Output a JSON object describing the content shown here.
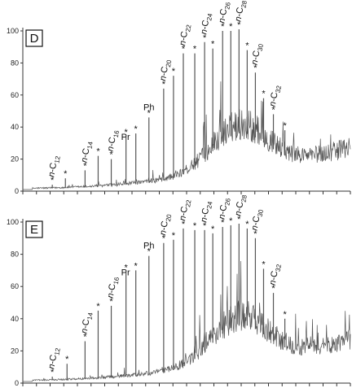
{
  "chart_data": [
    {
      "type": "line",
      "panel": "D",
      "ylim": [
        0,
        100
      ],
      "yticks": [
        0,
        20,
        40,
        60,
        80,
        100
      ],
      "xticks": 24,
      "peaks": [
        {
          "x": 0.09,
          "y": 4,
          "label": "n-C",
          "sub": "12",
          "star": true
        },
        {
          "x": 0.13,
          "y": 8,
          "label": "",
          "sub": "",
          "star": true
        },
        {
          "x": 0.19,
          "y": 13,
          "label": "n-C",
          "sub": "14",
          "star": true
        },
        {
          "x": 0.23,
          "y": 22,
          "label": "",
          "sub": "",
          "star": true
        },
        {
          "x": 0.27,
          "y": 20,
          "label": "n-C",
          "sub": "16",
          "star": true
        },
        {
          "x": 0.315,
          "y": 34,
          "label": "Pr",
          "sub": "",
          "star": true
        },
        {
          "x": 0.345,
          "y": 36,
          "label": "",
          "sub": "",
          "star": true
        },
        {
          "x": 0.385,
          "y": 46,
          "label": "Ph",
          "sub": "",
          "star": true
        },
        {
          "x": 0.43,
          "y": 64,
          "label": "n-C",
          "sub": "20",
          "star": true
        },
        {
          "x": 0.46,
          "y": 72,
          "label": "",
          "sub": "",
          "star": true
        },
        {
          "x": 0.49,
          "y": 86,
          "label": "n-C",
          "sub": "22",
          "star": true
        },
        {
          "x": 0.525,
          "y": 86,
          "label": "",
          "sub": "",
          "star": true
        },
        {
          "x": 0.555,
          "y": 93,
          "label": "n-C",
          "sub": "24",
          "star": true
        },
        {
          "x": 0.58,
          "y": 89,
          "label": "",
          "sub": "",
          "star": true
        },
        {
          "x": 0.61,
          "y": 100,
          "label": "n-C",
          "sub": "26",
          "star": true
        },
        {
          "x": 0.635,
          "y": 100,
          "label": "",
          "sub": "",
          "star": true
        },
        {
          "x": 0.66,
          "y": 101,
          "label": "n-C",
          "sub": "28",
          "star": true
        },
        {
          "x": 0.685,
          "y": 88,
          "label": "",
          "sub": "",
          "star": true
        },
        {
          "x": 0.71,
          "y": 74,
          "label": "n-C",
          "sub": "30",
          "star": true
        },
        {
          "x": 0.735,
          "y": 58,
          "label": "",
          "sub": "",
          "star": true
        },
        {
          "x": 0.765,
          "y": 48,
          "label": "n-C",
          "sub": "32",
          "star": true
        },
        {
          "x": 0.8,
          "y": 38,
          "label": "",
          "sub": "",
          "star": true
        }
      ]
    },
    {
      "type": "line",
      "panel": "E",
      "ylim": [
        0,
        100
      ],
      "yticks": [
        0,
        20,
        40,
        60,
        80,
        100
      ],
      "xticks": 24,
      "peaks": [
        {
          "x": 0.09,
          "y": 4,
          "label": "n-C",
          "sub": "12",
          "star": true
        },
        {
          "x": 0.135,
          "y": 12,
          "label": "",
          "sub": "",
          "star": true
        },
        {
          "x": 0.19,
          "y": 26,
          "label": "n-C",
          "sub": "14",
          "star": true
        },
        {
          "x": 0.23,
          "y": 45,
          "label": "",
          "sub": "",
          "star": true
        },
        {
          "x": 0.27,
          "y": 48,
          "label": "n-C",
          "sub": "16",
          "star": true
        },
        {
          "x": 0.315,
          "y": 69,
          "label": "Pr",
          "sub": "",
          "star": true
        },
        {
          "x": 0.345,
          "y": 70,
          "label": "",
          "sub": "",
          "star": true
        },
        {
          "x": 0.385,
          "y": 79,
          "label": "Ph",
          "sub": "",
          "star": true
        },
        {
          "x": 0.43,
          "y": 87,
          "label": "n-C",
          "sub": "20",
          "star": true
        },
        {
          "x": 0.46,
          "y": 89,
          "label": "",
          "sub": "",
          "star": true
        },
        {
          "x": 0.49,
          "y": 96,
          "label": "n-C",
          "sub": "22",
          "star": true
        },
        {
          "x": 0.525,
          "y": 95,
          "label": "",
          "sub": "",
          "star": true
        },
        {
          "x": 0.555,
          "y": 95,
          "label": "n-C",
          "sub": "24",
          "star": true
        },
        {
          "x": 0.58,
          "y": 93,
          "label": "",
          "sub": "",
          "star": true
        },
        {
          "x": 0.61,
          "y": 97,
          "label": "n-C",
          "sub": "26",
          "star": true
        },
        {
          "x": 0.635,
          "y": 98,
          "label": "",
          "sub": "",
          "star": true
        },
        {
          "x": 0.66,
          "y": 99,
          "label": "n-C",
          "sub": "28",
          "star": true
        },
        {
          "x": 0.685,
          "y": 96,
          "label": "",
          "sub": "",
          "star": true
        },
        {
          "x": 0.71,
          "y": 90,
          "label": "n-C",
          "sub": "30",
          "star": true
        },
        {
          "x": 0.735,
          "y": 71,
          "label": "",
          "sub": "",
          "star": true
        },
        {
          "x": 0.765,
          "y": 56,
          "label": "n-C",
          "sub": "32",
          "star": true
        },
        {
          "x": 0.8,
          "y": 40,
          "label": "",
          "sub": "",
          "star": true
        }
      ]
    }
  ],
  "colors": {
    "trace": "#555555",
    "axis": "#333333",
    "text": "#111111"
  }
}
